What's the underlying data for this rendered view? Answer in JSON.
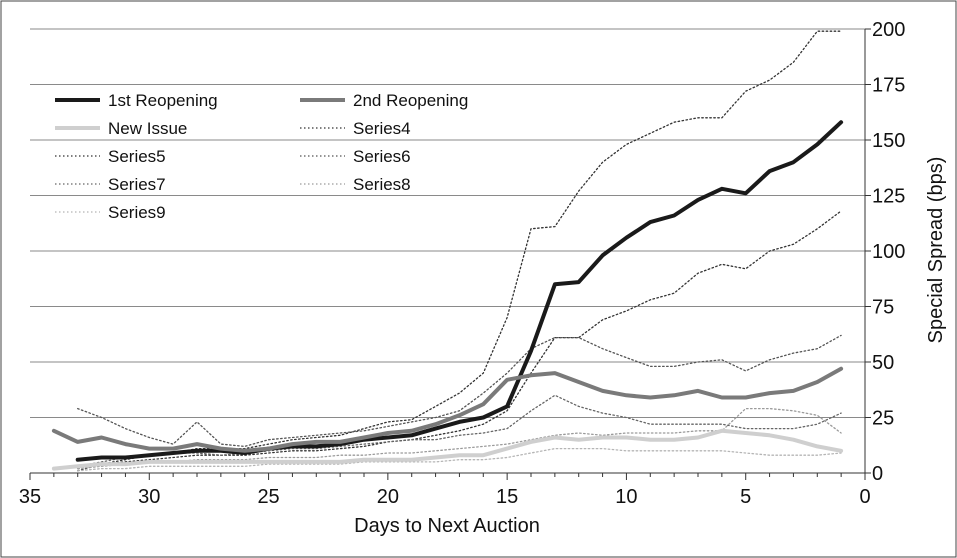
{
  "chart_data": {
    "type": "line",
    "title": "",
    "xlabel": "Days to Next Auction",
    "ylabel": "Special Spread (bps)",
    "xlim": [
      35,
      0
    ],
    "ylim": [
      0,
      200
    ],
    "x_reversed": true,
    "y_axis_position": "right",
    "grid": "horizontal",
    "legend_position": "top-left",
    "x_ticks": [
      "35",
      "30",
      "25",
      "20",
      "15",
      "10",
      "5",
      "0"
    ],
    "y_ticks": [
      "0",
      "25",
      "50",
      "75",
      "100",
      "125",
      "150",
      "175",
      "200"
    ],
    "series": [
      {
        "name": "1st Reopening",
        "color": "#1a1a1a",
        "style": "solid-thick",
        "x": [
          33,
          32,
          31,
          30,
          29,
          28,
          27,
          26,
          25,
          24,
          23,
          22,
          21,
          20,
          19,
          18,
          17,
          16,
          15,
          14,
          13,
          12,
          11,
          10,
          9,
          8,
          7,
          6,
          5,
          4,
          3,
          2,
          1
        ],
        "values": [
          6,
          7,
          7,
          8,
          9,
          10,
          10,
          9,
          11,
          12,
          12,
          13,
          15,
          16,
          17,
          20,
          23,
          25,
          30,
          55,
          85,
          86,
          98,
          106,
          113,
          116,
          123,
          128,
          126,
          136,
          140,
          148,
          158
        ]
      },
      {
        "name": "2nd Reopening",
        "color": "#7a7a7a",
        "style": "solid-thick",
        "x": [
          34,
          33,
          32,
          31,
          30,
          29,
          28,
          27,
          26,
          25,
          24,
          23,
          22,
          21,
          20,
          19,
          18,
          17,
          16,
          15,
          14,
          13,
          12,
          11,
          10,
          9,
          8,
          7,
          6,
          5,
          4,
          3,
          2,
          1
        ],
        "values": [
          19,
          14,
          16,
          13,
          11,
          11,
          13,
          11,
          10,
          11,
          13,
          14,
          14,
          16,
          18,
          19,
          22,
          26,
          31,
          42,
          44,
          45,
          41,
          37,
          35,
          34,
          35,
          37,
          34,
          34,
          36,
          37,
          41,
          47
        ]
      },
      {
        "name": "New Issue",
        "color": "#cfcfcf",
        "style": "solid-thick",
        "x": [
          34,
          33,
          32,
          31,
          30,
          29,
          28,
          27,
          26,
          25,
          24,
          23,
          22,
          21,
          20,
          19,
          18,
          17,
          16,
          15,
          14,
          13,
          12,
          11,
          10,
          9,
          8,
          7,
          6,
          5,
          4,
          3,
          2,
          1
        ],
        "values": [
          2,
          3,
          4,
          4,
          5,
          5,
          5,
          5,
          5,
          5,
          5,
          5,
          5,
          6,
          6,
          6,
          7,
          8,
          8,
          11,
          14,
          16,
          15,
          16,
          16,
          15,
          15,
          16,
          19,
          18,
          17,
          15,
          12,
          10
        ]
      },
      {
        "name": "Series4",
        "color": "#333333",
        "style": "dotted",
        "x": [
          33,
          32,
          31,
          30,
          29,
          28,
          27,
          26,
          25,
          24,
          23,
          22,
          21,
          20,
          19,
          18,
          17,
          16,
          15,
          14,
          13,
          12,
          11,
          10,
          9,
          8,
          7,
          6,
          5,
          4,
          3,
          2,
          1
        ],
        "values": [
          1,
          4,
          6,
          8,
          9,
          11,
          11,
          11,
          13,
          15,
          16,
          17,
          20,
          23,
          24,
          30,
          36,
          45,
          70,
          110,
          111,
          127,
          140,
          148,
          153,
          158,
          160,
          160,
          172,
          177,
          185,
          199,
          199
        ]
      },
      {
        "name": "Series5",
        "color": "#333333",
        "style": "dotted",
        "x": [
          33,
          32,
          31,
          30,
          29,
          28,
          27,
          26,
          25,
          24,
          23,
          22,
          21,
          20,
          19,
          18,
          17,
          16,
          15,
          14,
          13,
          12,
          11,
          10,
          9,
          8,
          7,
          6,
          5,
          4,
          3,
          2,
          1
        ],
        "values": [
          2,
          4,
          5,
          6,
          7,
          8,
          8,
          8,
          9,
          10,
          10,
          11,
          12,
          14,
          15,
          17,
          19,
          22,
          28,
          45,
          61,
          61,
          69,
          73,
          78,
          81,
          90,
          94,
          92,
          100,
          103,
          110,
          118
        ]
      },
      {
        "name": "Series6",
        "color": "#555555",
        "style": "dotted",
        "x": [
          33,
          32,
          31,
          30,
          29,
          28,
          27,
          26,
          25,
          24,
          23,
          22,
          21,
          20,
          19,
          18,
          17,
          16,
          15,
          14,
          13,
          12,
          11,
          10,
          9,
          8,
          7,
          6,
          5,
          4,
          3,
          2,
          1
        ],
        "values": [
          29,
          25,
          20,
          16,
          13,
          23,
          13,
          12,
          15,
          16,
          17,
          18,
          19,
          21,
          23,
          25,
          28,
          36,
          45,
          56,
          61,
          61,
          56,
          52,
          48,
          48,
          50,
          51,
          46,
          51,
          54,
          56,
          62
        ]
      },
      {
        "name": "Series7",
        "color": "#666666",
        "style": "dotted",
        "x": [
          33,
          32,
          31,
          30,
          29,
          28,
          27,
          26,
          25,
          24,
          23,
          22,
          21,
          20,
          19,
          18,
          17,
          16,
          15,
          14,
          13,
          12,
          11,
          10,
          9,
          8,
          7,
          6,
          5,
          4,
          3,
          2,
          1
        ],
        "values": [
          3,
          5,
          7,
          8,
          9,
          9,
          8,
          9,
          10,
          11,
          11,
          12,
          13,
          14,
          15,
          15,
          17,
          18,
          20,
          28,
          35,
          30,
          27,
          25,
          22,
          22,
          22,
          22,
          20,
          20,
          20,
          22,
          27
        ]
      },
      {
        "name": "Series8",
        "color": "#9a9a9a",
        "style": "dotted",
        "x": [
          33,
          32,
          31,
          30,
          29,
          28,
          27,
          26,
          25,
          24,
          23,
          22,
          21,
          20,
          19,
          18,
          17,
          16,
          15,
          14,
          13,
          12,
          11,
          10,
          9,
          8,
          7,
          6,
          5,
          4,
          3,
          2,
          1
        ],
        "values": [
          2,
          3,
          4,
          5,
          5,
          6,
          6,
          6,
          7,
          7,
          7,
          8,
          8,
          9,
          9,
          10,
          11,
          12,
          13,
          15,
          17,
          18,
          17,
          18,
          18,
          18,
          19,
          19,
          29,
          29,
          28,
          26,
          18
        ]
      },
      {
        "name": "Series9",
        "color": "#b5b5b5",
        "style": "dotted",
        "x": [
          33,
          32,
          31,
          30,
          29,
          28,
          27,
          26,
          25,
          24,
          23,
          22,
          21,
          20,
          19,
          18,
          17,
          16,
          15,
          14,
          13,
          12,
          11,
          10,
          9,
          8,
          7,
          6,
          5,
          4,
          3,
          2,
          1
        ],
        "values": [
          1,
          2,
          2,
          3,
          3,
          3,
          3,
          3,
          4,
          4,
          4,
          4,
          5,
          5,
          5,
          5,
          6,
          6,
          7,
          9,
          11,
          11,
          11,
          10,
          10,
          10,
          10,
          10,
          9,
          8,
          8,
          8,
          9
        ]
      }
    ]
  }
}
